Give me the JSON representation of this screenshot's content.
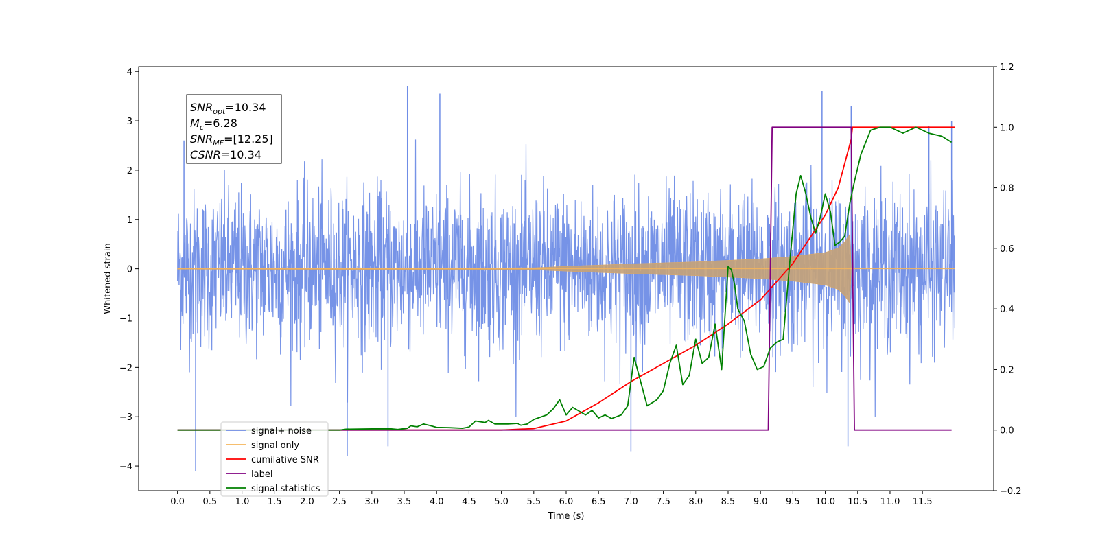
{
  "chart_data": {
    "type": "line",
    "xlabel": "Time (s)",
    "ylabel": "Whitened strain",
    "xlim": [
      -0.6,
      12.6
    ],
    "ylim": [
      -4.5,
      4.1
    ],
    "y2lim": [
      -0.2,
      1.2
    ],
    "x_ticks": [
      0.0,
      0.5,
      1.0,
      1.5,
      2.0,
      2.5,
      3.0,
      3.5,
      4.0,
      4.5,
      5.0,
      5.5,
      6.0,
      6.5,
      7.0,
      7.5,
      8.0,
      8.5,
      9.0,
      9.5,
      10.0,
      10.5,
      11.0,
      11.5
    ],
    "x_tick_labels": [
      "0.0",
      "0.5",
      "1.0",
      "1.5",
      "2.0",
      "2.5",
      "3.0",
      "3.5",
      "4.0",
      "4.5",
      "5.0",
      "5.5",
      "6.0",
      "6.5",
      "7.0",
      "7.5",
      "8.0",
      "8.5",
      "9.0",
      "9.5",
      "10.0",
      "10.5",
      "11.0",
      "11.5"
    ],
    "y_ticks": [
      4,
      3,
      2,
      1,
      0,
      -1,
      -2,
      -3,
      -4
    ],
    "y_tick_labels": [
      "4",
      "3",
      "2",
      "1",
      "0",
      "−1",
      "−2",
      "−3",
      "−4"
    ],
    "y2_ticks": [
      1.2,
      1.0,
      0.8,
      0.6,
      0.4,
      0.2,
      0.0,
      -0.2
    ],
    "y2_tick_labels": [
      "1.2",
      "1.0",
      "0.8",
      "0.6",
      "0.4",
      "0.2",
      "0.0",
      "−0.2"
    ],
    "grid": false,
    "legend_position": "lower-left",
    "annotation": {
      "lines": [
        {
          "base": "SNR",
          "sub": "opt",
          "rest": "=10.34"
        },
        {
          "base": "M",
          "sub": "c",
          "rest": "=6.28"
        },
        {
          "base": "SNR",
          "sub": "MF",
          "rest": "=[12.25]"
        },
        {
          "base": "CSNR",
          "sub": "",
          "rest": "=10.34"
        }
      ]
    },
    "series": [
      {
        "name": "signal+ noise",
        "color": "#6f8de6",
        "axis": "left",
        "x_range": [
          0.0,
          12.0
        ],
        "noise_std": 0.8,
        "extremes": [
          [
            0.28,
            -4.1
          ],
          [
            0.1,
            2.6
          ],
          [
            3.55,
            3.7
          ],
          [
            4.05,
            3.55
          ],
          [
            7.0,
            -3.7
          ],
          [
            10.35,
            -3.6
          ],
          [
            9.95,
            3.6
          ],
          [
            2.62,
            -3.8
          ],
          [
            3.25,
            -3.6
          ],
          [
            10.4,
            3.3
          ],
          [
            11.95,
            3.0
          ],
          [
            11.6,
            2.9
          ]
        ]
      },
      {
        "name": "signal only",
        "color": "#f5b55a",
        "axis": "left",
        "envelope": [
          [
            0.0,
            0.01
          ],
          [
            5.5,
            0.02
          ],
          [
            6.0,
            0.05
          ],
          [
            7.0,
            0.1
          ],
          [
            8.0,
            0.14
          ],
          [
            9.0,
            0.2
          ],
          [
            9.5,
            0.25
          ],
          [
            10.0,
            0.33
          ],
          [
            10.2,
            0.42
          ],
          [
            10.3,
            0.55
          ],
          [
            10.38,
            0.7
          ],
          [
            10.4,
            0.0
          ],
          [
            12.0,
            0.0
          ]
        ]
      },
      {
        "name": "cumilative SNR",
        "color": "#ff0000",
        "axis": "right",
        "points": [
          [
            0.0,
            0.0
          ],
          [
            5.0,
            0.0
          ],
          [
            5.5,
            0.005
          ],
          [
            6.0,
            0.03
          ],
          [
            6.5,
            0.09
          ],
          [
            7.0,
            0.16
          ],
          [
            7.5,
            0.22
          ],
          [
            8.0,
            0.28
          ],
          [
            8.5,
            0.35
          ],
          [
            9.0,
            0.43
          ],
          [
            9.5,
            0.55
          ],
          [
            10.0,
            0.71
          ],
          [
            10.2,
            0.8
          ],
          [
            10.4,
            0.96
          ],
          [
            10.42,
            1.0
          ],
          [
            12.0,
            1.0
          ]
        ]
      },
      {
        "name": "label",
        "color": "#800080",
        "axis": "right",
        "points": [
          [
            0.0,
            0.0
          ],
          [
            9.12,
            0.0
          ],
          [
            9.18,
            1.0
          ],
          [
            10.4,
            1.0
          ],
          [
            10.45,
            0.0
          ],
          [
            11.95,
            0.0
          ]
        ]
      },
      {
        "name": "signal statistics",
        "color": "#008000",
        "axis": "right",
        "points": [
          [
            0.0,
            0.0
          ],
          [
            2.5,
            0.0
          ],
          [
            2.6,
            0.003
          ],
          [
            3.0,
            0.004
          ],
          [
            3.3,
            0.004
          ],
          [
            3.4,
            0.002
          ],
          [
            3.55,
            0.006
          ],
          [
            3.6,
            0.014
          ],
          [
            3.7,
            0.011
          ],
          [
            3.8,
            0.02
          ],
          [
            3.9,
            0.015
          ],
          [
            4.0,
            0.009
          ],
          [
            4.2,
            0.008
          ],
          [
            4.4,
            0.006
          ],
          [
            4.5,
            0.01
          ],
          [
            4.6,
            0.03
          ],
          [
            4.75,
            0.025
          ],
          [
            4.8,
            0.032
          ],
          [
            4.9,
            0.02
          ],
          [
            5.1,
            0.02
          ],
          [
            5.25,
            0.022
          ],
          [
            5.3,
            0.016
          ],
          [
            5.4,
            0.02
          ],
          [
            5.5,
            0.035
          ],
          [
            5.7,
            0.05
          ],
          [
            5.8,
            0.07
          ],
          [
            5.9,
            0.1
          ],
          [
            6.0,
            0.05
          ],
          [
            6.1,
            0.075
          ],
          [
            6.3,
            0.05
          ],
          [
            6.4,
            0.065
          ],
          [
            6.5,
            0.04
          ],
          [
            6.6,
            0.05
          ],
          [
            6.7,
            0.038
          ],
          [
            6.85,
            0.05
          ],
          [
            6.95,
            0.08
          ],
          [
            7.05,
            0.24
          ],
          [
            7.15,
            0.16
          ],
          [
            7.25,
            0.08
          ],
          [
            7.4,
            0.1
          ],
          [
            7.5,
            0.13
          ],
          [
            7.6,
            0.22
          ],
          [
            7.7,
            0.28
          ],
          [
            7.8,
            0.15
          ],
          [
            7.9,
            0.18
          ],
          [
            8.0,
            0.3
          ],
          [
            8.1,
            0.22
          ],
          [
            8.2,
            0.24
          ],
          [
            8.3,
            0.35
          ],
          [
            8.4,
            0.2
          ],
          [
            8.5,
            0.54
          ],
          [
            8.55,
            0.53
          ],
          [
            8.6,
            0.48
          ],
          [
            8.65,
            0.4
          ],
          [
            8.75,
            0.36
          ],
          [
            8.85,
            0.25
          ],
          [
            8.95,
            0.2
          ],
          [
            9.05,
            0.21
          ],
          [
            9.15,
            0.27
          ],
          [
            9.25,
            0.29
          ],
          [
            9.35,
            0.3
          ],
          [
            9.45,
            0.55
          ],
          [
            9.55,
            0.78
          ],
          [
            9.62,
            0.84
          ],
          [
            9.7,
            0.78
          ],
          [
            9.78,
            0.7
          ],
          [
            9.85,
            0.65
          ],
          [
            9.92,
            0.7
          ],
          [
            10.0,
            0.78
          ],
          [
            10.08,
            0.72
          ],
          [
            10.15,
            0.61
          ],
          [
            10.22,
            0.62
          ],
          [
            10.3,
            0.64
          ],
          [
            10.38,
            0.75
          ],
          [
            10.45,
            0.82
          ],
          [
            10.55,
            0.91
          ],
          [
            10.7,
            0.99
          ],
          [
            10.85,
            1.0
          ],
          [
            11.0,
            1.0
          ],
          [
            11.2,
            0.98
          ],
          [
            11.4,
            1.0
          ],
          [
            11.6,
            0.98
          ],
          [
            11.8,
            0.97
          ],
          [
            11.95,
            0.95
          ]
        ]
      }
    ]
  }
}
